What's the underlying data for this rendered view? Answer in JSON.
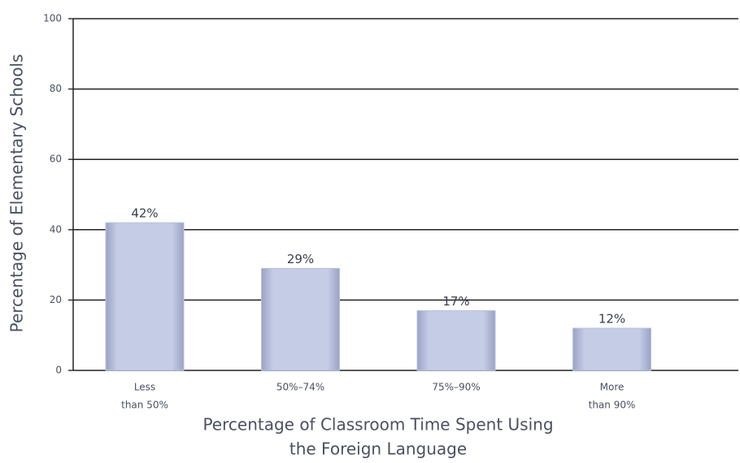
{
  "chart_data": {
    "type": "bar",
    "ylabel": "Percentage of Elementary Schools",
    "xlabel": [
      "Percentage of Classroom Time Spent Using",
      "the Foreign Language"
    ],
    "categories": [
      [
        "Less",
        "than 50%"
      ],
      [
        "50%–74%"
      ],
      [
        "75%–90%"
      ],
      [
        "More",
        "than 90%"
      ]
    ],
    "values": [
      42,
      29,
      17,
      12
    ],
    "value_labels": [
      "42%",
      "29%",
      "17%",
      "12%"
    ],
    "color": "#b9c1dd",
    "ylim": [
      0,
      100
    ],
    "yticks": [
      0,
      20,
      40,
      60,
      80,
      100
    ],
    "grid": true
  }
}
